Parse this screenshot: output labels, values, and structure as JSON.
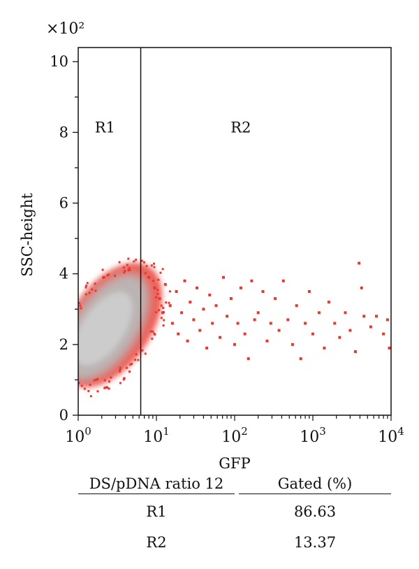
{
  "chart_data": {
    "type": "scatter",
    "title": "",
    "xlabel": "GFP",
    "ylabel": "SSC-height",
    "x_scale": "log",
    "xlim": [
      1,
      10000
    ],
    "ylim": [
      0,
      10.4
    ],
    "y_multiplier": "×10²",
    "x_ticks": [
      {
        "value": 1,
        "base": "10",
        "exp": "0"
      },
      {
        "value": 10,
        "base": "10",
        "exp": "1"
      },
      {
        "value": 100,
        "base": "10",
        "exp": "2"
      },
      {
        "value": 1000,
        "base": "10",
        "exp": "3"
      },
      {
        "value": 10000,
        "base": "10",
        "exp": "4"
      }
    ],
    "y_ticks": [
      0,
      2,
      4,
      6,
      8,
      10
    ],
    "gate": {
      "x": 6.3
    },
    "regions": [
      {
        "label": "R1",
        "x": 2.2,
        "y": 8
      },
      {
        "label": "R2",
        "x": 120,
        "y": 8
      }
    ],
    "colors": {
      "dense_core": "#b9b9b9",
      "points": "#e8372f"
    },
    "points": [
      [
        8,
        3.9
      ],
      [
        9.5,
        3.6
      ],
      [
        11,
        3.3
      ],
      [
        12,
        2.9
      ],
      [
        13,
        3.7
      ],
      [
        15,
        3.1
      ],
      [
        16,
        2.6
      ],
      [
        18,
        3.5
      ],
      [
        19,
        2.3
      ],
      [
        21,
        2.9
      ],
      [
        23,
        3.8
      ],
      [
        25,
        2.1
      ],
      [
        27,
        3.2
      ],
      [
        30,
        2.7
      ],
      [
        33,
        3.6
      ],
      [
        36,
        2.4
      ],
      [
        40,
        3.0
      ],
      [
        44,
        1.9
      ],
      [
        48,
        3.4
      ],
      [
        52,
        2.6
      ],
      [
        58,
        3.1
      ],
      [
        65,
        2.2
      ],
      [
        72,
        3.9
      ],
      [
        80,
        2.8
      ],
      [
        90,
        3.3
      ],
      [
        100,
        2.0
      ],
      [
        110,
        2.6
      ],
      [
        120,
        3.6
      ],
      [
        135,
        2.3
      ],
      [
        150,
        1.6
      ],
      [
        165,
        3.8
      ],
      [
        180,
        2.7
      ],
      [
        200,
        2.9
      ],
      [
        230,
        3.5
      ],
      [
        260,
        2.1
      ],
      [
        290,
        2.6
      ],
      [
        330,
        3.3
      ],
      [
        370,
        2.4
      ],
      [
        420,
        3.8
      ],
      [
        480,
        2.7
      ],
      [
        550,
        2.0
      ],
      [
        620,
        3.1
      ],
      [
        700,
        1.6
      ],
      [
        800,
        2.6
      ],
      [
        900,
        3.5
      ],
      [
        1000,
        2.3
      ],
      [
        1200,
        2.9
      ],
      [
        1400,
        1.9
      ],
      [
        1600,
        3.2
      ],
      [
        1900,
        2.6
      ],
      [
        2200,
        2.2
      ],
      [
        2600,
        2.9
      ],
      [
        3000,
        2.4
      ],
      [
        3500,
        1.8
      ],
      [
        3900,
        4.3
      ],
      [
        4200,
        3.6
      ],
      [
        4500,
        2.8
      ],
      [
        5500,
        2.5
      ],
      [
        6500,
        2.8
      ],
      [
        8000,
        2.3
      ],
      [
        9000,
        2.7
      ],
      [
        9500,
        1.9
      ]
    ]
  },
  "table": {
    "header": [
      "DS/pDNA ratio 12",
      "Gated (%)"
    ],
    "rows": [
      [
        "R1",
        "86.63"
      ],
      [
        "R2",
        "13.37"
      ]
    ]
  }
}
